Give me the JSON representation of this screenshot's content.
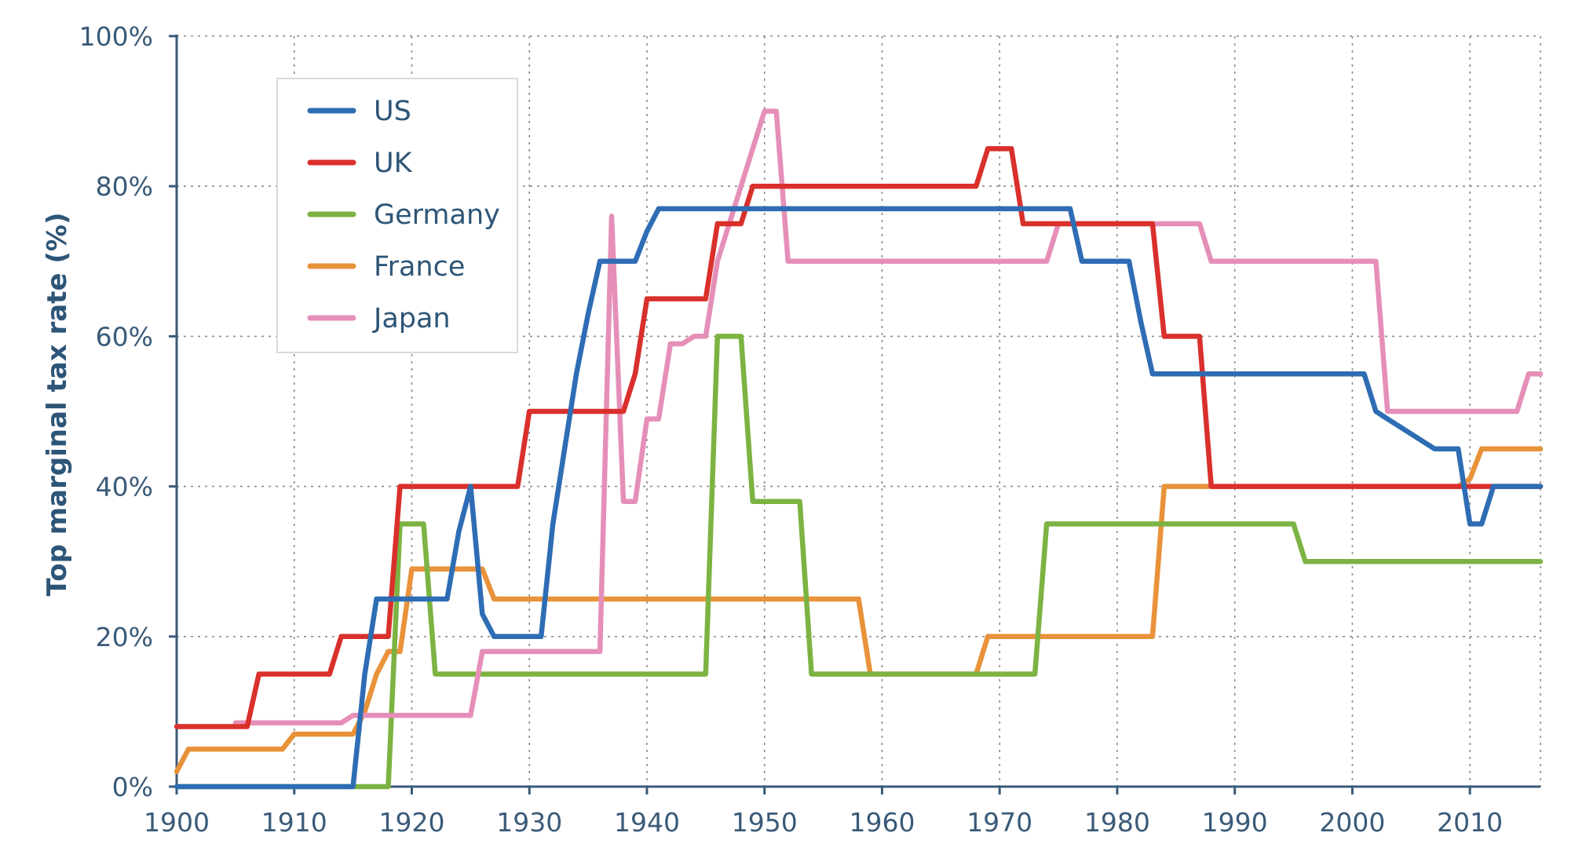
{
  "chart_data": {
    "type": "line",
    "title": "",
    "xlabel": "",
    "ylabel": "Top marginal tax rate (%)",
    "xlim": [
      1900,
      2016
    ],
    "ylim": [
      0,
      100
    ],
    "x_ticks": [
      "1900",
      "1910",
      "1920",
      "1930",
      "1940",
      "1950",
      "1960",
      "1970",
      "1980",
      "1990",
      "2000",
      "2010"
    ],
    "y_ticks": [
      "0%",
      "20%",
      "40%",
      "60%",
      "80%",
      "100%"
    ],
    "legend_position": "top-left",
    "series": [
      {
        "name": "France",
        "color": "#e8923a",
        "points": [
          [
            1900,
            2
          ],
          [
            1901,
            5
          ],
          [
            1909,
            5
          ],
          [
            1910,
            7
          ],
          [
            1915,
            7
          ],
          [
            1916,
            10
          ],
          [
            1917,
            15
          ],
          [
            1918,
            18
          ],
          [
            1919,
            18
          ],
          [
            1920,
            29
          ],
          [
            1926,
            29
          ],
          [
            1927,
            25
          ],
          [
            1958,
            25
          ],
          [
            1959,
            15
          ],
          [
            1968,
            15
          ],
          [
            1969,
            20
          ],
          [
            1983,
            20
          ],
          [
            1984,
            40
          ],
          [
            2009,
            40
          ],
          [
            2010,
            41
          ],
          [
            2011,
            45
          ],
          [
            2016,
            45
          ]
        ]
      },
      {
        "name": "Germany",
        "color": "#7cb342",
        "points": [
          [
            1900,
            0
          ],
          [
            1918,
            0
          ],
          [
            1919,
            35
          ],
          [
            1921,
            35
          ],
          [
            1922,
            15
          ],
          [
            1945,
            15
          ],
          [
            1946,
            60
          ],
          [
            1948,
            60
          ],
          [
            1949,
            38
          ],
          [
            1953,
            38
          ],
          [
            1954,
            15
          ],
          [
            1973,
            15
          ],
          [
            1974,
            35
          ],
          [
            1995,
            35
          ],
          [
            1996,
            30
          ],
          [
            2016,
            30
          ]
        ]
      },
      {
        "name": "Japan",
        "color": "#e58fb8",
        "points": [
          [
            1905,
            8.5
          ],
          [
            1914,
            8.5
          ],
          [
            1915,
            9.5
          ],
          [
            1925,
            9.5
          ],
          [
            1926,
            18
          ],
          [
            1936,
            18
          ],
          [
            1937,
            76
          ],
          [
            1938,
            38
          ],
          [
            1939,
            38
          ],
          [
            1940,
            49
          ],
          [
            1941,
            49
          ],
          [
            1942,
            59
          ],
          [
            1943,
            59
          ],
          [
            1944,
            60
          ],
          [
            1945,
            60
          ],
          [
            1946,
            70
          ],
          [
            1947,
            75
          ],
          [
            1948,
            80
          ],
          [
            1949,
            85
          ],
          [
            1950,
            90
          ],
          [
            1951,
            90
          ],
          [
            1952,
            70
          ],
          [
            1974,
            70
          ],
          [
            1975,
            75
          ],
          [
            1987,
            75
          ],
          [
            1988,
            70
          ],
          [
            2002,
            70
          ],
          [
            2003,
            50
          ],
          [
            2014,
            50
          ],
          [
            2015,
            55
          ],
          [
            2016,
            55
          ]
        ]
      },
      {
        "name": "UK",
        "color": "#d9302c",
        "points": [
          [
            1900,
            8
          ],
          [
            1906,
            8
          ],
          [
            1907,
            15
          ],
          [
            1913,
            15
          ],
          [
            1914,
            20
          ],
          [
            1918,
            20
          ],
          [
            1919,
            40
          ],
          [
            1929,
            40
          ],
          [
            1930,
            50
          ],
          [
            1938,
            50
          ],
          [
            1939,
            55
          ],
          [
            1940,
            65
          ],
          [
            1945,
            65
          ],
          [
            1946,
            75
          ],
          [
            1948,
            75
          ],
          [
            1949,
            80
          ],
          [
            1968,
            80
          ],
          [
            1969,
            85
          ],
          [
            1971,
            85
          ],
          [
            1972,
            75
          ],
          [
            1983,
            75
          ],
          [
            1984,
            60
          ],
          [
            1987,
            60
          ],
          [
            1988,
            40
          ],
          [
            2009,
            40
          ],
          [
            2010,
            40
          ],
          [
            2016,
            40
          ]
        ]
      },
      {
        "name": "US",
        "color": "#2e6db4",
        "points": [
          [
            1900,
            0
          ],
          [
            1915,
            0
          ],
          [
            1916,
            15
          ],
          [
            1917,
            25
          ],
          [
            1923,
            25
          ],
          [
            1924,
            34
          ],
          [
            1925,
            40
          ],
          [
            1926,
            23
          ],
          [
            1927,
            20
          ],
          [
            1931,
            20
          ],
          [
            1932,
            35
          ],
          [
            1933,
            45
          ],
          [
            1934,
            55
          ],
          [
            1935,
            63
          ],
          [
            1936,
            70
          ],
          [
            1939,
            70
          ],
          [
            1940,
            74
          ],
          [
            1941,
            77
          ],
          [
            1976,
            77
          ],
          [
            1977,
            70
          ],
          [
            1981,
            70
          ],
          [
            1982,
            62
          ],
          [
            1983,
            55
          ],
          [
            2001,
            55
          ],
          [
            2002,
            50
          ],
          [
            2003,
            49
          ],
          [
            2007,
            45
          ],
          [
            2009,
            45
          ],
          [
            2010,
            35
          ],
          [
            2011,
            35
          ],
          [
            2012,
            40
          ],
          [
            2016,
            40
          ]
        ]
      }
    ],
    "legend_order": [
      "US",
      "UK",
      "Germany",
      "France",
      "Japan"
    ]
  }
}
